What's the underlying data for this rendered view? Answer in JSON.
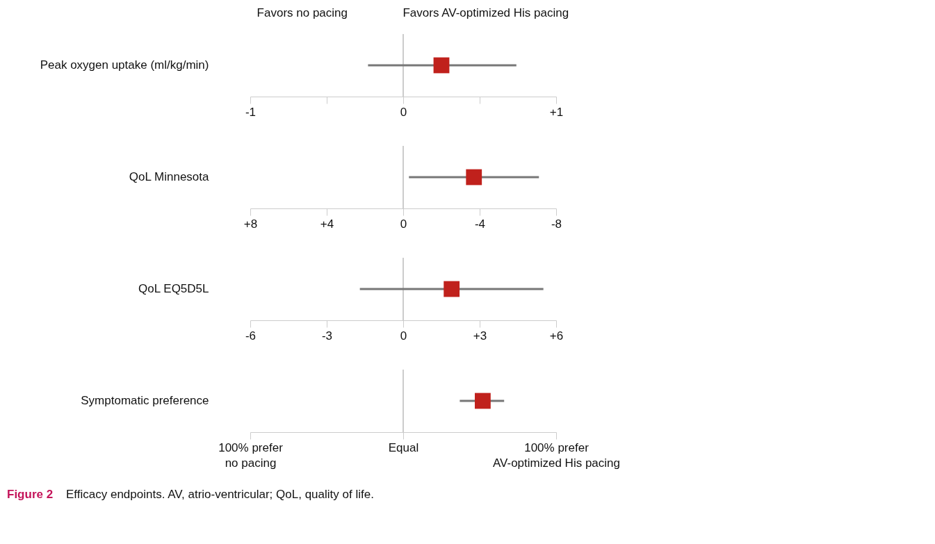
{
  "chart_data": [
    {
      "type": "scatter",
      "orientation": "horizontal",
      "categories": [
        "Peak oxygen uptake (ml/kg/min)"
      ],
      "marker": "square",
      "series": [
        {
          "color": "#c0211c",
          "values": [
            0.25
          ],
          "errors": [
            [
              -0.23,
              0.74
            ]
          ]
        }
      ],
      "xlim": [
        -1,
        1
      ],
      "xticks": [
        -1,
        {
          "value": -0.5,
          "label": null
        },
        0,
        {
          "value": 0.5,
          "label": null
        },
        {
          "value": 1,
          "label": "+1"
        }
      ],
      "ref_lines": [
        {
          "axis": "x",
          "value": 0
        }
      ],
      "annotations": [
        "Favors no pacing",
        "Favors AV-optimized His pacing"
      ]
    },
    {
      "type": "scatter",
      "orientation": "horizontal",
      "categories": [
        "QoL Minnesota"
      ],
      "marker": "square",
      "series": [
        {
          "color": "#c0211c",
          "values": [
            -3.7
          ],
          "errors": [
            [
              -7.1,
              -0.3
            ]
          ]
        }
      ],
      "xlim": [
        8,
        -8
      ],
      "xticks": [
        {
          "value": 8,
          "label": "+8"
        },
        {
          "value": 4,
          "label": "+4"
        },
        0,
        -4,
        -8
      ],
      "ref_lines": [
        {
          "axis": "x",
          "value": 0
        }
      ]
    },
    {
      "type": "scatter",
      "orientation": "horizontal",
      "categories": [
        "QoL EQ5D5L"
      ],
      "marker": "square",
      "series": [
        {
          "color": "#c0211c",
          "values": [
            1.9
          ],
          "errors": [
            [
              -1.7,
              5.5
            ]
          ]
        }
      ],
      "xlim": [
        -6,
        6
      ],
      "xticks": [
        -6,
        -3,
        0,
        {
          "value": 3,
          "label": "+3"
        },
        {
          "value": 6,
          "label": "+6"
        }
      ],
      "ref_lines": [
        {
          "axis": "x",
          "value": 0
        }
      ]
    },
    {
      "type": "scatter",
      "orientation": "horizontal",
      "categories": [
        "Symptomatic preference"
      ],
      "marker": "square",
      "series": [
        {
          "color": "#c0211c",
          "values": [
            52
          ],
          "errors": [
            [
              37,
              66
            ]
          ]
        }
      ],
      "xlim": [
        -100,
        100
      ],
      "xticks": [
        {
          "value": -100,
          "label": "100% prefer\nno pacing"
        },
        {
          "value": 0,
          "label": "Equal"
        },
        {
          "value": 100,
          "label": "100% prefer\nAV-optimized His pacing"
        }
      ],
      "ref_lines": [
        {
          "axis": "x",
          "value": 0
        }
      ],
      "annotations": [
        "Figure 2",
        "Efficacy endpoints. AV, atrio-ventricular; QoL, quality of life."
      ]
    }
  ]
}
